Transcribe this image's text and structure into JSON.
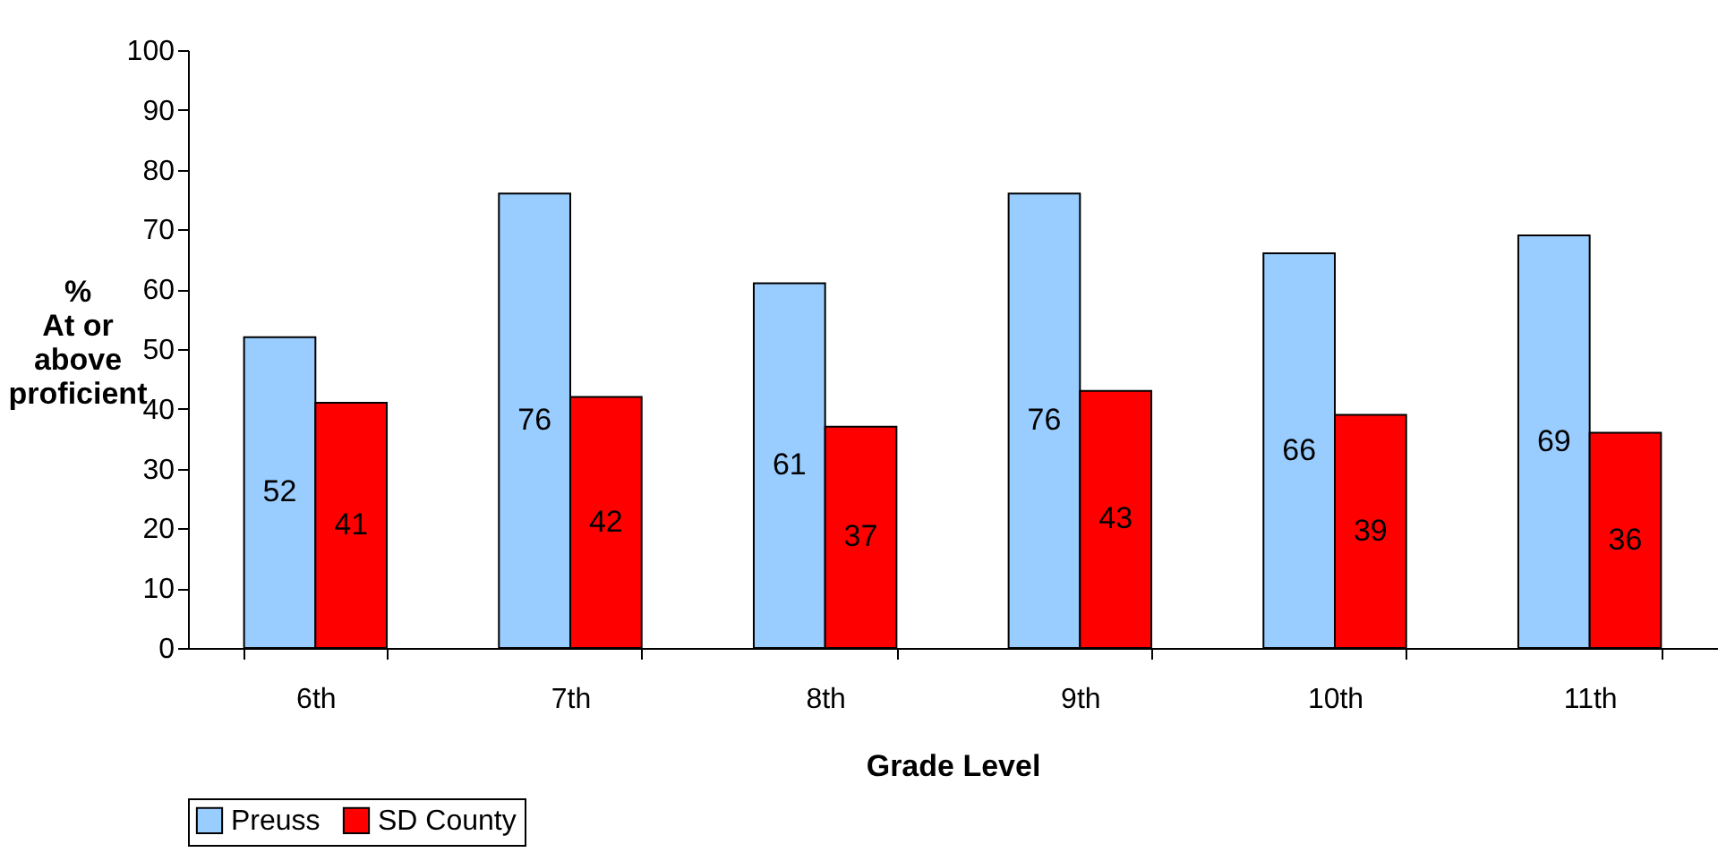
{
  "chart_data": {
    "type": "bar",
    "xlabel": "Grade Level",
    "ylabel": "%\nAt or\nabove\nproficient",
    "categories": [
      "6th",
      "7th",
      "8th",
      "9th",
      "10th",
      "11th"
    ],
    "series": [
      {
        "name": "Preuss",
        "color": "#99ccff",
        "values": [
          52,
          76,
          61,
          76,
          66,
          69
        ]
      },
      {
        "name": "SD County",
        "color": "#ff0000",
        "values": [
          41,
          42,
          37,
          43,
          39,
          36
        ]
      }
    ],
    "ylim": [
      0,
      100
    ],
    "yticks": [
      0,
      10,
      20,
      30,
      40,
      50,
      60,
      70,
      80,
      90,
      100
    ],
    "grid": false,
    "legend": "bottom",
    "data_labels": true
  }
}
